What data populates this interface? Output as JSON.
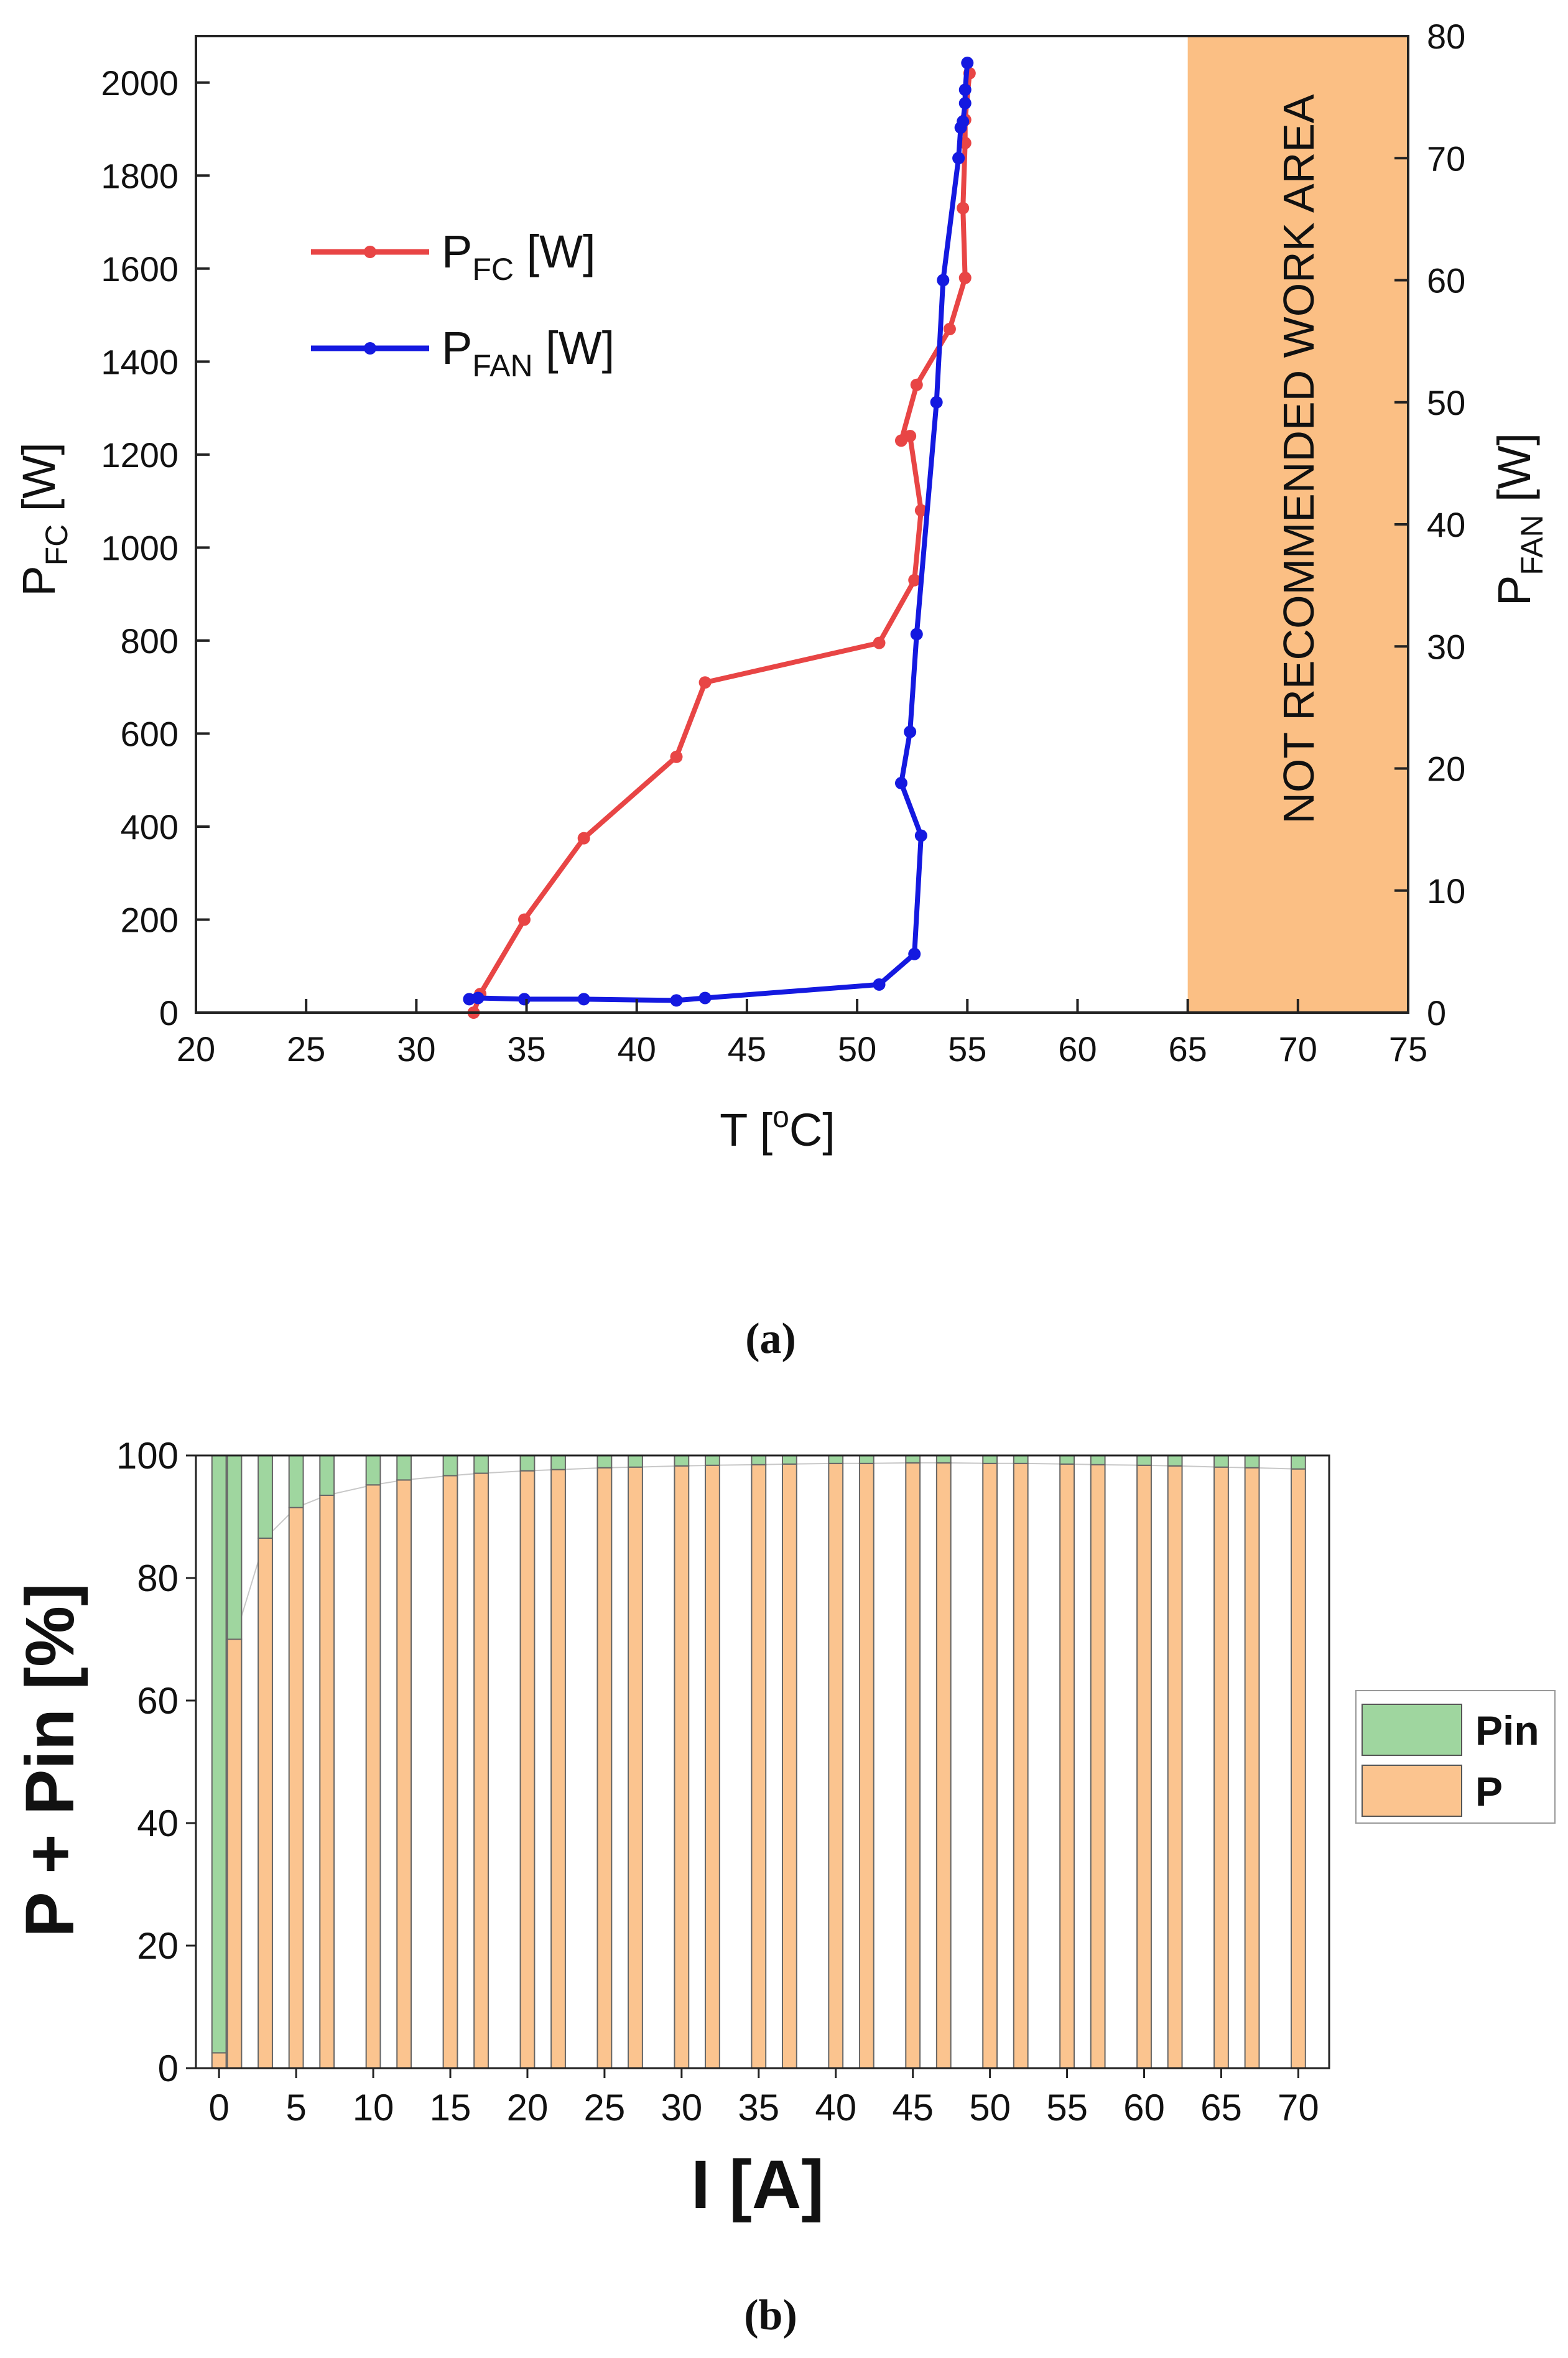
{
  "chart_data": [
    {
      "type": "line",
      "caption": "(a)",
      "xlabel": "T [",
      "xlabel_sup": "o",
      "xlabel_end": "C]",
      "ylabel_left": {
        "main": "P",
        "sub": "FC",
        "unit": " [W]"
      },
      "ylabel_right": {
        "main": "P",
        "sub": "FAN",
        "unit": " [W]"
      },
      "xlim": [
        20,
        75
      ],
      "ylim_left": [
        0,
        2100
      ],
      "ylim_right": [
        0,
        80
      ],
      "x_ticks": [
        "20",
        "25",
        "30",
        "35",
        "40",
        "45",
        "50",
        "55",
        "60",
        "65",
        "70",
        "75"
      ],
      "y_left_ticks": [
        "0",
        "200",
        "400",
        "600",
        "800",
        "1000",
        "1200",
        "1400",
        "1600",
        "1800",
        "2000"
      ],
      "y_right_ticks": [
        "0",
        "10",
        "20",
        "30",
        "40",
        "50",
        "60",
        "70",
        "80"
      ],
      "shaded_region": {
        "x": [
          65,
          75
        ],
        "label": "NOT RECOMMENDED WORK AREA",
        "color": "#fbbf84"
      },
      "legend": [
        {
          "main": "P",
          "sub": "FC",
          "unit": " [W]"
        },
        {
          "main": "P",
          "sub": "FAN",
          "unit": " [W]"
        }
      ],
      "series": [
        {
          "name": "PFC [W]",
          "axis": "left",
          "color": "#e84545",
          "x": [
            32.6,
            32.9,
            34.9,
            37.6,
            41.8,
            43.1,
            51.0,
            52.6,
            52.9,
            52.4,
            52.0,
            52.7,
            54.2,
            54.9,
            54.8,
            54.9,
            54.9,
            55.1
          ],
          "y": [
            0,
            40,
            200,
            375,
            550,
            710,
            795,
            930,
            1080,
            1240,
            1230,
            1350,
            1470,
            1580,
            1730,
            1870,
            1920,
            2020
          ]
        },
        {
          "name": "PFAN [W]",
          "axis": "right",
          "color": "#1419e0",
          "x": [
            32.4,
            32.8,
            34.9,
            37.6,
            41.8,
            43.1,
            51.0,
            52.6,
            52.9,
            52.0,
            52.4,
            52.7,
            53.6,
            53.9,
            54.6,
            54.7,
            54.8,
            54.9,
            54.9,
            55.0
          ],
          "y": [
            1.1,
            1.2,
            1.1,
            1.1,
            1.0,
            1.2,
            2.3,
            4.8,
            14.5,
            18.8,
            23.0,
            31.0,
            50.0,
            60.0,
            70.0,
            72.5,
            73.0,
            74.5,
            75.6,
            77.8
          ]
        }
      ]
    },
    {
      "type": "bar",
      "stacked": true,
      "caption": "(b)",
      "xlabel": "I [A]",
      "ylabel": "P + Pin [%]",
      "ylim": [
        0,
        100
      ],
      "xlim": [
        -1.5,
        72
      ],
      "x_ticks": [
        "0",
        "5",
        "10",
        "15",
        "20",
        "25",
        "30",
        "35",
        "40",
        "45",
        "50",
        "55",
        "60",
        "65",
        "70"
      ],
      "y_ticks": [
        "0",
        "20",
        "40",
        "60",
        "80",
        "100"
      ],
      "legend": [
        {
          "name": "Pin",
          "color": "#9fd69f"
        },
        {
          "name": "P",
          "color": "#fbc48f"
        }
      ],
      "categories": [
        0,
        1,
        3,
        5,
        7,
        10,
        12,
        15,
        17,
        20,
        22,
        25,
        27,
        30,
        32,
        35,
        37,
        40,
        42,
        45,
        47,
        50,
        52,
        55,
        57,
        60,
        62,
        65,
        67,
        70
      ],
      "series": [
        {
          "name": "P",
          "color": "#fbc48f",
          "values": [
            2.5,
            70,
            86.5,
            91.5,
            93.5,
            95.2,
            96.0,
            96.7,
            97.1,
            97.5,
            97.7,
            98.0,
            98.1,
            98.3,
            98.4,
            98.5,
            98.6,
            98.7,
            98.7,
            98.8,
            98.8,
            98.7,
            98.7,
            98.6,
            98.5,
            98.4,
            98.3,
            98.1,
            98.0,
            97.8
          ]
        },
        {
          "name": "Pin",
          "color": "#9fd69f",
          "values": [
            97.5,
            30,
            13.5,
            8.5,
            6.5,
            4.8,
            4.0,
            3.3,
            2.9,
            2.5,
            2.3,
            2.0,
            1.9,
            1.7,
            1.6,
            1.5,
            1.4,
            1.3,
            1.3,
            1.2,
            1.2,
            1.3,
            1.3,
            1.4,
            1.5,
            1.6,
            1.7,
            1.9,
            2.0,
            2.2
          ]
        }
      ]
    }
  ]
}
